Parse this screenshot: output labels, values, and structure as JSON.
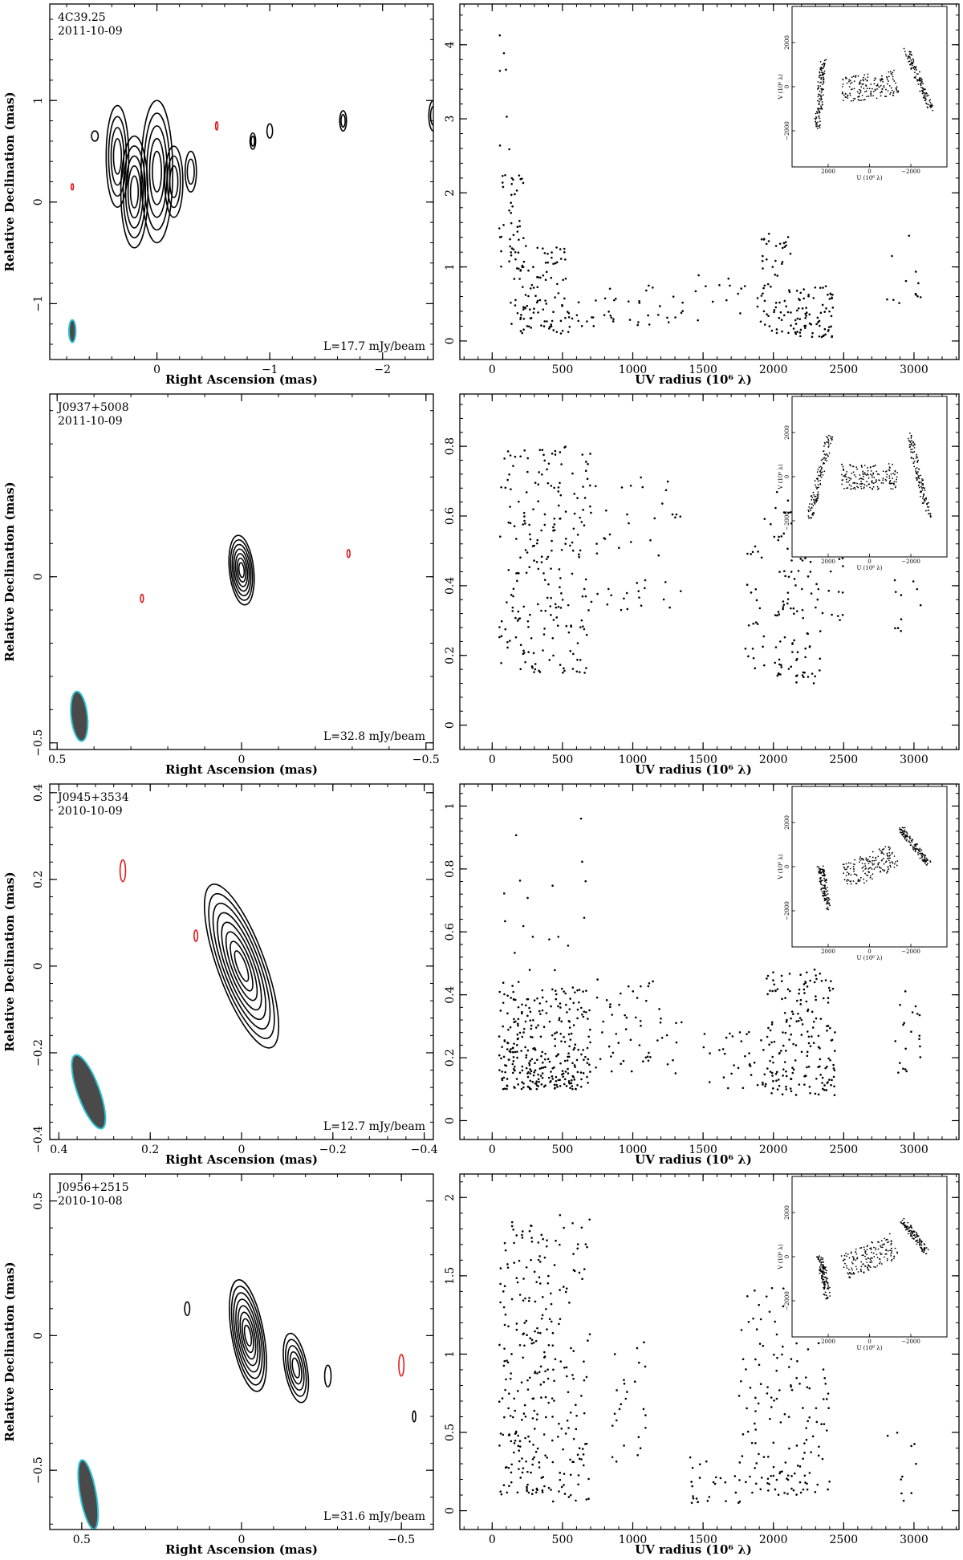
{
  "chart_data": [
    {
      "type": "contour",
      "source": "4C39.25",
      "date": "2011-10-09",
      "level": "L=17.7 mJy/beam",
      "xlabel": "Right Ascension  (mas)",
      "ylabel": "Relative Declination  (mas)",
      "xlim": [
        0.95,
        -2.45
      ],
      "ylim": [
        -1.55,
        1.95
      ],
      "xticks": [
        0,
        -1,
        -2
      ],
      "xtick_labels": [
        "0",
        "−1",
        "−2"
      ],
      "yticks": [
        -1,
        0,
        1
      ],
      "ytick_labels": [
        "−1",
        "0",
        "1"
      ],
      "beam": {
        "x": 0.75,
        "y": -1.27,
        "a": 0.11,
        "b": 0.03,
        "pa": 0
      },
      "components": [
        {
          "x": 0.0,
          "y": 0.3,
          "a": 0.7,
          "b": 0.14,
          "pa": 0,
          "levels": 5
        },
        {
          "x": 0.2,
          "y": 0.1,
          "a": 0.55,
          "b": 0.12,
          "pa": 0,
          "levels": 5
        },
        {
          "x": 0.35,
          "y": 0.45,
          "a": 0.5,
          "b": 0.1,
          "pa": 0,
          "levels": 4
        },
        {
          "x": -0.15,
          "y": 0.2,
          "a": 0.35,
          "b": 0.08,
          "pa": 0,
          "levels": 3
        },
        {
          "x": -0.3,
          "y": 0.3,
          "a": 0.2,
          "b": 0.05,
          "pa": 0,
          "levels": 2
        },
        {
          "x": 0.55,
          "y": 0.65,
          "a": 0.05,
          "b": 0.03,
          "pa": 0,
          "levels": 1
        },
        {
          "x": -0.85,
          "y": 0.6,
          "a": 0.08,
          "b": 0.025,
          "pa": 0,
          "levels": 2
        },
        {
          "x": -1.0,
          "y": 0.7,
          "a": 0.07,
          "b": 0.025,
          "pa": 0,
          "levels": 1
        },
        {
          "x": -1.65,
          "y": 0.8,
          "a": 0.1,
          "b": 0.03,
          "pa": 0,
          "levels": 2
        },
        {
          "x": -2.45,
          "y": 0.85,
          "a": 0.15,
          "b": 0.04,
          "pa": 0,
          "levels": 2
        }
      ],
      "negatives": [
        {
          "x": 0.75,
          "y": 0.15,
          "a": 0.03,
          "b": 0.01,
          "pa": 0
        },
        {
          "x": -0.53,
          "y": 0.75,
          "a": 0.04,
          "b": 0.01,
          "pa": 0
        }
      ]
    },
    {
      "type": "scatter",
      "xlabel": "UV radius  (10⁶ λ)",
      "ylabel": "Amplitude",
      "xlim": [
        -230,
        3320
      ],
      "ylim": [
        -0.25,
        4.55
      ],
      "xticks": [
        0,
        500,
        1000,
        1500,
        2000,
        2500,
        3000
      ],
      "yticks": [
        0,
        1,
        2,
        3,
        4
      ],
      "ytick_labels": [
        "0",
        "1",
        "2",
        "3",
        "4"
      ],
      "clusters": [
        [
          50,
          140,
          1.0,
          4.2,
          25
        ],
        [
          130,
          230,
          0.2,
          2.3,
          40
        ],
        [
          200,
          560,
          0.1,
          1.3,
          90
        ],
        [
          560,
          1380,
          0.2,
          0.75,
          40
        ],
        [
          1400,
          1900,
          0.2,
          1.1,
          15
        ],
        [
          1900,
          2150,
          0.1,
          1.5,
          60
        ],
        [
          2150,
          2450,
          0.05,
          0.75,
          70
        ],
        [
          2800,
          3050,
          0.5,
          1.5,
          12
        ]
      ],
      "inset": {
        "xlabel": "U (10⁶ λ)",
        "ylabel": "V (10⁶ λ)",
        "xtick_labels": [
          "2000",
          "0",
          "−2000"
        ],
        "ytick_labels": [
          "2000",
          "0",
          "−2000"
        ],
        "angle": -0.15,
        "spread": 0.55
      }
    },
    {
      "type": "contour",
      "source": "J0937+5008",
      "date": "2011-10-09",
      "level": "L=32.8 mJy/beam",
      "xlabel": "Right Ascension  (mas)",
      "ylabel": "Relative Declination  (mas)",
      "xlim": [
        0.52,
        -0.52
      ],
      "ylim": [
        -0.52,
        0.55
      ],
      "xticks": [
        0.5,
        0,
        -0.5
      ],
      "xtick_labels": [
        "0.5",
        "0",
        "−0.5"
      ],
      "yticks": [
        -0.5,
        0
      ],
      "ytick_labels": [
        "−0.5",
        "0"
      ],
      "beam": {
        "x": 0.44,
        "y": -0.42,
        "a": 0.075,
        "b": 0.022,
        "pa": -6
      },
      "components": [
        {
          "x": 0.0,
          "y": 0.02,
          "a": 0.105,
          "b": 0.033,
          "pa": -6,
          "levels": 7
        }
      ],
      "negatives": [
        {
          "x": 0.27,
          "y": -0.065,
          "a": 0.012,
          "b": 0.004,
          "pa": 0
        },
        {
          "x": -0.29,
          "y": 0.07,
          "a": 0.012,
          "b": 0.004,
          "pa": 0
        }
      ]
    },
    {
      "type": "scatter",
      "xlabel": "UV radius  (10⁶ λ)",
      "ylabel": "Amplitude",
      "xlim": [
        -230,
        3320
      ],
      "ylim": [
        -0.07,
        0.95
      ],
      "xticks": [
        0,
        500,
        1000,
        1500,
        2000,
        2500,
        3000
      ],
      "yticks": [
        0,
        0.2,
        0.4,
        0.6,
        0.8
      ],
      "ytick_labels": [
        "0",
        "0.2",
        "0.4",
        "0.6",
        "0.8"
      ],
      "clusters": [
        [
          50,
          700,
          0.15,
          0.8,
          220
        ],
        [
          700,
          1380,
          0.33,
          0.72,
          45
        ],
        [
          1800,
          2000,
          0.15,
          0.6,
          25
        ],
        [
          2000,
          2350,
          0.12,
          0.68,
          110
        ],
        [
          2350,
          2500,
          0.3,
          0.5,
          12
        ],
        [
          2850,
          3050,
          0.27,
          0.45,
          10
        ]
      ],
      "inset": {
        "xlabel": "U (10⁶ λ)",
        "ylabel": "V (10⁶ λ)",
        "xtick_labels": [
          "2000",
          "0",
          "−2000"
        ],
        "ytick_labels": [
          "2000",
          "0",
          "−2000"
        ],
        "angle": 0.0,
        "spread": 0.7
      }
    },
    {
      "type": "contour",
      "source": "J0945+3534",
      "date": "2010-10-09",
      "level": "L=12.7 mJy/beam",
      "xlabel": "Right Ascension  (mas)",
      "ylabel": "Relative Declination  (mas)",
      "xlim": [
        0.42,
        -0.42
      ],
      "ylim": [
        -0.4,
        0.42
      ],
      "xticks": [
        0.4,
        0.2,
        0,
        -0.2,
        -0.4
      ],
      "xtick_labels": [
        "0.4",
        "0.2",
        "0",
        "−0.2",
        "−0.4"
      ],
      "yticks": [
        -0.4,
        -0.2,
        0,
        0.2,
        0.4
      ],
      "ytick_labels": [
        "−0.4",
        "−0.2",
        "0",
        "0.2",
        "0.4"
      ],
      "beam": {
        "x": 0.335,
        "y": -0.29,
        "a": 0.09,
        "b": 0.024,
        "pa": -20
      },
      "components": [
        {
          "x": 0.0,
          "y": 0.0,
          "a": 0.2,
          "b": 0.052,
          "pa": -20,
          "levels": 8
        }
      ],
      "negatives": [
        {
          "x": 0.26,
          "y": 0.22,
          "a": 0.025,
          "b": 0.006,
          "pa": 0
        },
        {
          "x": 0.1,
          "y": 0.07,
          "a": 0.013,
          "b": 0.004,
          "pa": 0
        }
      ]
    },
    {
      "type": "scatter",
      "xlabel": "UV radius  (10⁶ λ)",
      "ylabel": "Amplitude",
      "xlim": [
        -230,
        3320
      ],
      "ylim": [
        -0.06,
        1.07
      ],
      "xticks": [
        0,
        500,
        1000,
        1500,
        2000,
        2500,
        3000
      ],
      "yticks": [
        0,
        0.2,
        0.4,
        0.6,
        0.8,
        1
      ],
      "ytick_labels": [
        "0",
        "0.2",
        "0.4",
        "0.6",
        "0.8",
        "1"
      ],
      "clusters": [
        [
          50,
          700,
          0.1,
          0.42,
          300
        ],
        [
          50,
          700,
          0.42,
          0.98,
          22
        ],
        [
          700,
          1350,
          0.15,
          0.45,
          55
        ],
        [
          1500,
          1950,
          0.1,
          0.32,
          35
        ],
        [
          1950,
          2450,
          0.08,
          0.48,
          180
        ],
        [
          2850,
          3050,
          0.15,
          0.42,
          20
        ]
      ],
      "inset": {
        "xlabel": "U (10⁶ λ)",
        "ylabel": "V (10⁶ λ)",
        "xtick_labels": [
          "2000",
          "0",
          "−2000"
        ],
        "ytick_labels": [
          "2000",
          "0",
          "−2000"
        ],
        "angle": -0.42,
        "spread": 0.35
      }
    },
    {
      "type": "contour",
      "source": "J0956+2515",
      "date": "2010-10-08",
      "level": "L=31.6 mJy/beam",
      "xlabel": "Right Ascension  (mas)",
      "ylabel": "Relative Declination  (mas)",
      "xlim": [
        0.6,
        -0.6
      ],
      "ylim": [
        -0.72,
        0.6
      ],
      "xticks": [
        0.5,
        0,
        -0.5
      ],
      "xtick_labels": [
        "0.5",
        "0",
        "−0.5"
      ],
      "yticks": [
        -0.5,
        0,
        0.5
      ],
      "ytick_labels": [
        "−0.5",
        "0",
        "0.5"
      ],
      "beam": {
        "x": 0.48,
        "y": -0.59,
        "a": 0.13,
        "b": 0.025,
        "pa": -10
      },
      "components": [
        {
          "x": -0.02,
          "y": 0.0,
          "a": 0.21,
          "b": 0.05,
          "pa": -10,
          "levels": 8
        },
        {
          "x": -0.17,
          "y": -0.12,
          "a": 0.13,
          "b": 0.035,
          "pa": -10,
          "levels": 5
        },
        {
          "x": 0.17,
          "y": 0.1,
          "a": 0.025,
          "b": 0.008,
          "pa": 0,
          "levels": 1
        },
        {
          "x": -0.54,
          "y": -0.3,
          "a": 0.02,
          "b": 0.005,
          "pa": 0,
          "levels": 1
        },
        {
          "x": -0.27,
          "y": -0.15,
          "a": 0.04,
          "b": 0.01,
          "pa": 0,
          "levels": 1
        }
      ],
      "negatives": [
        {
          "x": -0.5,
          "y": -0.11,
          "a": 0.04,
          "b": 0.008,
          "pa": 0
        }
      ]
    },
    {
      "type": "scatter",
      "xlabel": "UV radius  (10⁶ λ)",
      "ylabel": "Amplitude",
      "xlim": [
        -230,
        3320
      ],
      "ylim": [
        -0.12,
        2.15
      ],
      "xticks": [
        0,
        500,
        1000,
        1500,
        2000,
        2500,
        3000
      ],
      "yticks": [
        0,
        0.5,
        1,
        1.5,
        2
      ],
      "ytick_labels": [
        "0",
        "0.5",
        "1",
        "1.5",
        "2"
      ],
      "clusters": [
        [
          50,
          400,
          0.1,
          1.85,
          200
        ],
        [
          400,
          700,
          0.05,
          1.9,
          100
        ],
        [
          850,
          1100,
          0.3,
          1.1,
          25
        ],
        [
          1400,
          1800,
          0.05,
          0.35,
          25
        ],
        [
          1750,
          2400,
          0.1,
          1.45,
          160
        ],
        [
          2800,
          3050,
          0.05,
          0.5,
          10
        ]
      ],
      "inset": {
        "xlabel": "U (10⁶ λ)",
        "ylabel": "V (10⁶ λ)",
        "xtick_labels": [
          "2000",
          "0",
          "−2000"
        ],
        "ytick_labels": [
          "2000",
          "0",
          "−2000"
        ],
        "angle": -0.42,
        "spread": 0.33
      }
    }
  ]
}
